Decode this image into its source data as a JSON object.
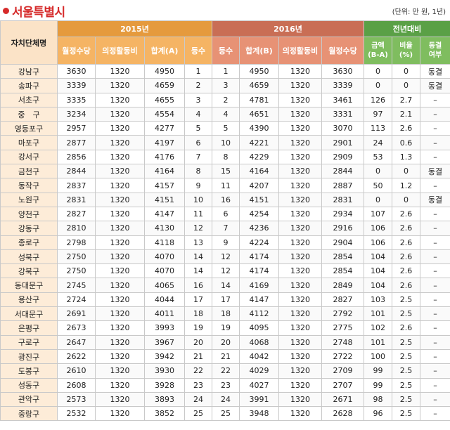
{
  "title": "서울특별시",
  "unit": "(단위: 만 원, 1년)",
  "header": {
    "corner": "자치단체명",
    "group_2015": "2015년",
    "group_2016": "2016년",
    "group_change": "전년대비",
    "cols_2015": [
      "월정수당",
      "의정활동비",
      "합계(A)",
      "등수"
    ],
    "cols_2016": [
      "등수",
      "합계(B)",
      "의정활동비",
      "월정수당"
    ],
    "cols_change": [
      "금액\n(B-A)",
      "비율\n(%)",
      "동결\n여부"
    ]
  },
  "rows": [
    {
      "name": "강남구",
      "m15": "3630",
      "e15": "1320",
      "t15": "4950",
      "r15": "1",
      "r16": "1",
      "t16": "4950",
      "e16": "1320",
      "m16": "3630",
      "diff": "0",
      "pct": "0",
      "frz": "동결"
    },
    {
      "name": "송파구",
      "m15": "3339",
      "e15": "1320",
      "t15": "4659",
      "r15": "2",
      "r16": "3",
      "t16": "4659",
      "e16": "1320",
      "m16": "3339",
      "diff": "0",
      "pct": "0",
      "frz": "동결"
    },
    {
      "name": "서초구",
      "m15": "3335",
      "e15": "1320",
      "t15": "4655",
      "r15": "3",
      "r16": "2",
      "t16": "4781",
      "e16": "1320",
      "m16": "3461",
      "diff": "126",
      "pct": "2.7",
      "frz": "–"
    },
    {
      "name": "중　구",
      "m15": "3234",
      "e15": "1320",
      "t15": "4554",
      "r15": "4",
      "r16": "4",
      "t16": "4651",
      "e16": "1320",
      "m16": "3331",
      "diff": "97",
      "pct": "2.1",
      "frz": "–"
    },
    {
      "name": "영등포구",
      "m15": "2957",
      "e15": "1320",
      "t15": "4277",
      "r15": "5",
      "r16": "5",
      "t16": "4390",
      "e16": "1320",
      "m16": "3070",
      "diff": "113",
      "pct": "2.6",
      "frz": "–"
    },
    {
      "name": "마포구",
      "m15": "2877",
      "e15": "1320",
      "t15": "4197",
      "r15": "6",
      "r16": "10",
      "t16": "4221",
      "e16": "1320",
      "m16": "2901",
      "diff": "24",
      "pct": "0.6",
      "frz": "–"
    },
    {
      "name": "강서구",
      "m15": "2856",
      "e15": "1320",
      "t15": "4176",
      "r15": "7",
      "r16": "8",
      "t16": "4229",
      "e16": "1320",
      "m16": "2909",
      "diff": "53",
      "pct": "1.3",
      "frz": "–"
    },
    {
      "name": "금천구",
      "m15": "2844",
      "e15": "1320",
      "t15": "4164",
      "r15": "8",
      "r16": "15",
      "t16": "4164",
      "e16": "1320",
      "m16": "2844",
      "diff": "0",
      "pct": "0",
      "frz": "동결"
    },
    {
      "name": "동작구",
      "m15": "2837",
      "e15": "1320",
      "t15": "4157",
      "r15": "9",
      "r16": "11",
      "t16": "4207",
      "e16": "1320",
      "m16": "2887",
      "diff": "50",
      "pct": "1.2",
      "frz": "–"
    },
    {
      "name": "노원구",
      "m15": "2831",
      "e15": "1320",
      "t15": "4151",
      "r15": "10",
      "r16": "16",
      "t16": "4151",
      "e16": "1320",
      "m16": "2831",
      "diff": "0",
      "pct": "0",
      "frz": "동결"
    },
    {
      "name": "양천구",
      "m15": "2827",
      "e15": "1320",
      "t15": "4147",
      "r15": "11",
      "r16": "6",
      "t16": "4254",
      "e16": "1320",
      "m16": "2934",
      "diff": "107",
      "pct": "2.6",
      "frz": "–"
    },
    {
      "name": "강동구",
      "m15": "2810",
      "e15": "1320",
      "t15": "4130",
      "r15": "12",
      "r16": "7",
      "t16": "4236",
      "e16": "1320",
      "m16": "2916",
      "diff": "106",
      "pct": "2.6",
      "frz": "–"
    },
    {
      "name": "종로구",
      "m15": "2798",
      "e15": "1320",
      "t15": "4118",
      "r15": "13",
      "r16": "9",
      "t16": "4224",
      "e16": "1320",
      "m16": "2904",
      "diff": "106",
      "pct": "2.6",
      "frz": "–"
    },
    {
      "name": "성북구",
      "m15": "2750",
      "e15": "1320",
      "t15": "4070",
      "r15": "14",
      "r16": "12",
      "t16": "4174",
      "e16": "1320",
      "m16": "2854",
      "diff": "104",
      "pct": "2.6",
      "frz": "–"
    },
    {
      "name": "강북구",
      "m15": "2750",
      "e15": "1320",
      "t15": "4070",
      "r15": "14",
      "r16": "12",
      "t16": "4174",
      "e16": "1320",
      "m16": "2854",
      "diff": "104",
      "pct": "2.6",
      "frz": "–"
    },
    {
      "name": "동대문구",
      "m15": "2745",
      "e15": "1320",
      "t15": "4065",
      "r15": "16",
      "r16": "14",
      "t16": "4169",
      "e16": "1320",
      "m16": "2849",
      "diff": "104",
      "pct": "2.6",
      "frz": "–"
    },
    {
      "name": "용산구",
      "m15": "2724",
      "e15": "1320",
      "t15": "4044",
      "r15": "17",
      "r16": "17",
      "t16": "4147",
      "e16": "1320",
      "m16": "2827",
      "diff": "103",
      "pct": "2.5",
      "frz": "–"
    },
    {
      "name": "서대문구",
      "m15": "2691",
      "e15": "1320",
      "t15": "4011",
      "r15": "18",
      "r16": "18",
      "t16": "4112",
      "e16": "1320",
      "m16": "2792",
      "diff": "101",
      "pct": "2.5",
      "frz": "–"
    },
    {
      "name": "은평구",
      "m15": "2673",
      "e15": "1320",
      "t15": "3993",
      "r15": "19",
      "r16": "19",
      "t16": "4095",
      "e16": "1320",
      "m16": "2775",
      "diff": "102",
      "pct": "2.6",
      "frz": "–"
    },
    {
      "name": "구로구",
      "m15": "2647",
      "e15": "1320",
      "t15": "3967",
      "r15": "20",
      "r16": "20",
      "t16": "4068",
      "e16": "1320",
      "m16": "2748",
      "diff": "101",
      "pct": "2.5",
      "frz": "–"
    },
    {
      "name": "광진구",
      "m15": "2622",
      "e15": "1320",
      "t15": "3942",
      "r15": "21",
      "r16": "21",
      "t16": "4042",
      "e16": "1320",
      "m16": "2722",
      "diff": "100",
      "pct": "2.5",
      "frz": "–"
    },
    {
      "name": "도봉구",
      "m15": "2610",
      "e15": "1320",
      "t15": "3930",
      "r15": "22",
      "r16": "22",
      "t16": "4029",
      "e16": "1320",
      "m16": "2709",
      "diff": "99",
      "pct": "2.5",
      "frz": "–"
    },
    {
      "name": "성동구",
      "m15": "2608",
      "e15": "1320",
      "t15": "3928",
      "r15": "23",
      "r16": "23",
      "t16": "4027",
      "e16": "1320",
      "m16": "2707",
      "diff": "99",
      "pct": "2.5",
      "frz": "–"
    },
    {
      "name": "관악구",
      "m15": "2573",
      "e15": "1320",
      "t15": "3893",
      "r15": "24",
      "r16": "24",
      "t16": "3991",
      "e16": "1320",
      "m16": "2671",
      "diff": "98",
      "pct": "2.5",
      "frz": "–"
    },
    {
      "name": "중랑구",
      "m15": "2532",
      "e15": "1320",
      "t15": "3852",
      "r15": "25",
      "r16": "25",
      "t16": "3948",
      "e16": "1320",
      "m16": "2628",
      "diff": "96",
      "pct": "2.5",
      "frz": "–"
    }
  ],
  "colors": {
    "title": "#d62a2a",
    "header_2015": "#e59a3d",
    "header_2016": "#c96e55",
    "header_change": "#5aa046",
    "name_cell": "#fdecd8"
  }
}
